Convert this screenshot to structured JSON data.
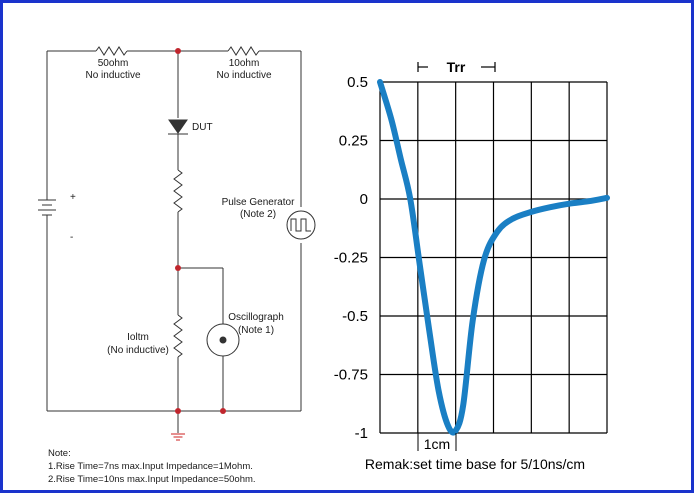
{
  "circuit": {
    "r1_value": "50ohm",
    "r1_note": "No inductive",
    "r2_value": "10ohm",
    "r2_note": "No inductive",
    "dut_label": "DUT",
    "plus": "+",
    "minus": "-",
    "pulse_generator": "Pulse Generator",
    "pulse_generator_note": "(Note 2)",
    "oscillograph": "Oscillograph",
    "oscillograph_note": "(Note 1)",
    "r3_value": "Ioltm",
    "r3_note": "(No inductive)"
  },
  "notes": {
    "heading": "Note:",
    "line1": "1.Rise Time=7ns max.Input Impedance=1Mohm.",
    "line2": "2.Rise Time=10ns max.Input Impedance=50ohm."
  },
  "waveform": {
    "trr_label": "Trr",
    "scale_label": "1cm",
    "remark": "Remak:set time base for 5/10ns/cm",
    "line_color": "#1a7fc4",
    "y_ticks": [
      "0.5",
      "0.25",
      "0",
      "-0.25",
      "-0.5",
      "-0.75",
      "-1"
    ]
  },
  "chart_data": {
    "type": "line",
    "ylim": [
      -1,
      0.5
    ],
    "xlim": [
      0,
      6
    ],
    "y_ticks": [
      0.5,
      0.25,
      0,
      -0.25,
      -0.5,
      -0.75,
      -1
    ],
    "grid": true,
    "series": [
      {
        "x": [
          0,
          0.3,
          0.55,
          0.8,
          1.05,
          1.3,
          1.55,
          1.8,
          2.0,
          2.2,
          2.45,
          2.75,
          3.1,
          3.5,
          4.0,
          4.5,
          5.0,
          5.5,
          6.0
        ],
        "y": [
          0.5,
          0.34,
          0.17,
          0.0,
          -0.28,
          -0.56,
          -0.82,
          -0.97,
          -0.99,
          -0.88,
          -0.52,
          -0.26,
          -0.14,
          -0.085,
          -0.055,
          -0.035,
          -0.02,
          -0.01,
          0.005
        ]
      }
    ]
  }
}
